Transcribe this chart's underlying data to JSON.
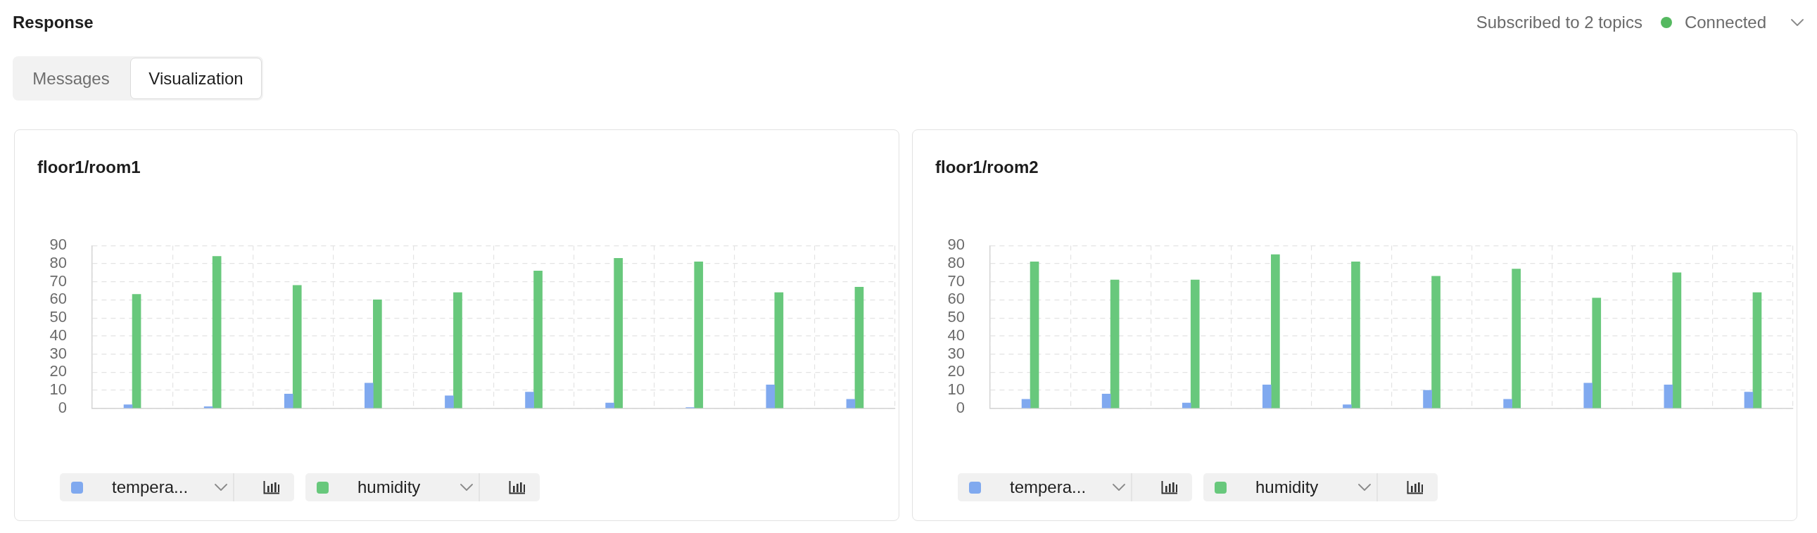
{
  "chart_data": [
    {
      "type": "other",
      "title": "Response",
      "annotations": [
        "Messages",
        "Visualization",
        "Subscribed to 2 topics",
        "Connected"
      ]
    },
    {
      "type": "bar",
      "title": "floor1/room1",
      "categories": [
        null,
        null,
        null,
        null,
        null,
        null,
        null,
        null,
        null,
        null
      ],
      "series": [
        {
          "name": "tempera...",
          "color": "#80a9ef",
          "values": [
            2,
            1,
            8,
            14,
            7,
            9,
            3,
            0.5,
            13,
            5
          ]
        },
        {
          "name": "humidity",
          "color": "#68c87c",
          "values": [
            63,
            84,
            68,
            60,
            64,
            76,
            83,
            81,
            64,
            67
          ]
        }
      ],
      "ylim": [
        0,
        90
      ],
      "yticks": [
        0,
        10,
        20,
        30,
        40,
        50,
        60,
        70,
        80,
        90
      ],
      "grid": true,
      "legend": "bottom",
      "tick_labels": "y"
    },
    {
      "type": "bar",
      "title": "floor1/room2",
      "categories": [
        null,
        null,
        null,
        null,
        null,
        null,
        null,
        null,
        null,
        null
      ],
      "series": [
        {
          "name": "tempera...",
          "color": "#80a9ef",
          "values": [
            5,
            8,
            3,
            13,
            2,
            10,
            5,
            14,
            13,
            9
          ]
        },
        {
          "name": "humidity",
          "color": "#68c87c",
          "values": [
            81,
            71,
            71,
            85,
            81,
            73,
            77,
            61,
            75,
            64
          ]
        }
      ],
      "ylim": [
        0,
        90
      ],
      "yticks": [
        0,
        10,
        20,
        30,
        40,
        50,
        60,
        70,
        80,
        90
      ],
      "grid": true,
      "legend": "bottom",
      "tick_labels": "y"
    }
  ]
}
